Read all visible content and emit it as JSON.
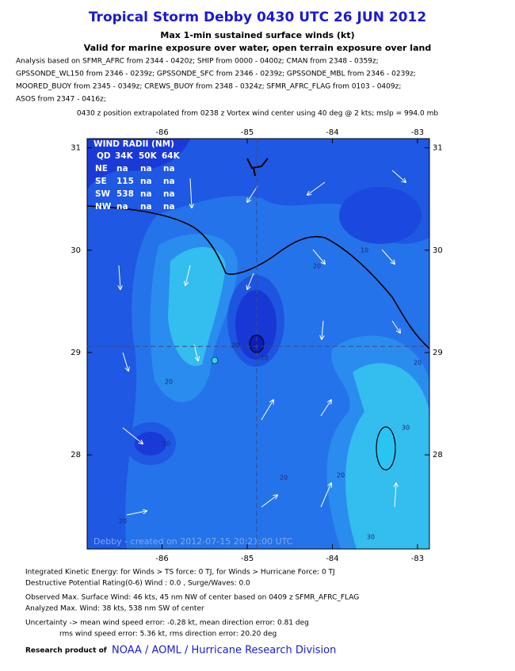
{
  "header": {
    "title": "Tropical Storm Debby 0430 UTC 26 JUN 2012",
    "subtitle": "Max 1-min sustained surface winds (kt)",
    "validity": "Valid for marine exposure over water, open terrain exposure over land",
    "analysis": [
      "Analysis based on SFMR_AFRC from 2344 - 0420z; SHIP from 0000 - 0400z; CMAN from 2348 - 0359z;",
      "GPSSONDE_WL150 from 2346 - 0239z; GPSSONDE_SFC from 2346 - 0239z; GPSSONDE_MBL from 2346 - 0239z;",
      "MOORED_BUOY from 2345 - 0349z; CREWS_BUOY from 2348 - 0324z; SFMR_AFRC_FLAG from 0103 - 0409z;",
      "ASOS from 2347 - 0416z;"
    ],
    "position": "0430 z position extrapolated from 0238 z Vortex wind center using 40 deg @ 2 kts; mslp = 994.0 mb"
  },
  "map": {
    "lonlim": [
      -86.88,
      -82.86
    ],
    "latlim": [
      27.08,
      31.09
    ],
    "xticks": [
      -86,
      -85,
      -84,
      -83
    ],
    "yticks": [
      28,
      29,
      30,
      31
    ],
    "center": {
      "lon": -84.89,
      "lat": 29.06
    },
    "contour_labels": [
      "10",
      "20",
      "20",
      "10",
      "20",
      "10",
      "20",
      "30",
      "20",
      "30",
      "20",
      "20"
    ],
    "watermark": "Debby - created on 2012-07-15 20:21:00 UTC",
    "wind_radii": {
      "title": "WIND RADII (NM)",
      "header": [
        "QD",
        "34K",
        "50K",
        "64K"
      ],
      "rows": [
        [
          "NE",
          "na",
          "na",
          "na"
        ],
        [
          "SE",
          "115",
          "na",
          "na"
        ],
        [
          "SW",
          "538",
          "na",
          "na"
        ],
        [
          "NW",
          "na",
          "na",
          "na"
        ]
      ]
    }
  },
  "footer": {
    "lines": [
      "Integrated Kinetic Energy: for Winds > TS force: 0 TJ, for Winds > Hurricane Force: 0 TJ",
      "Destructive Potential Rating(0-6)  Wind : 0.0 , Surge/Waves: 0.0",
      "Observed Max. Surface Wind: 46 kts, 45 nm NW of center based on 0409 z SFMR_AFRC_FLAG",
      "Analyzed Max. Wind: 38 kts, 538 nm  SW of center",
      "Uncertainty -> mean wind speed error:  -0.28 kt, mean direction error: 0.81 deg",
      "rms wind speed error: 5.36 kt, rms direction error: 20.20 deg"
    ],
    "credit": "Research product of",
    "link": "NOAA / AOML / Hurricane Research Division"
  }
}
